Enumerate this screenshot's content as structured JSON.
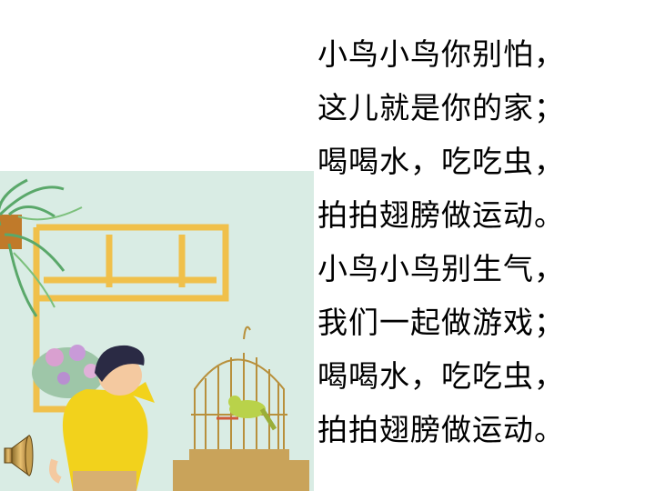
{
  "poem": {
    "lines": [
      "小鸟小鸟你别怕，",
      "这儿就是你的家；",
      "喝喝水，吃吃虫，",
      "拍拍翅膀做运动。",
      "小鸟小鸟别生气，",
      "我们一起做游戏；",
      "喝喝水，吃吃虫，",
      "拍拍翅膀做运动。"
    ]
  },
  "illustration": {
    "background_color": "#d9ece4",
    "frame_color": "#f0c04a",
    "shirt_color": "#f2d21c",
    "cage_color": "#b8903c",
    "bird_color": "#b9d24a"
  },
  "audio": {
    "icon": "speaker-icon"
  }
}
